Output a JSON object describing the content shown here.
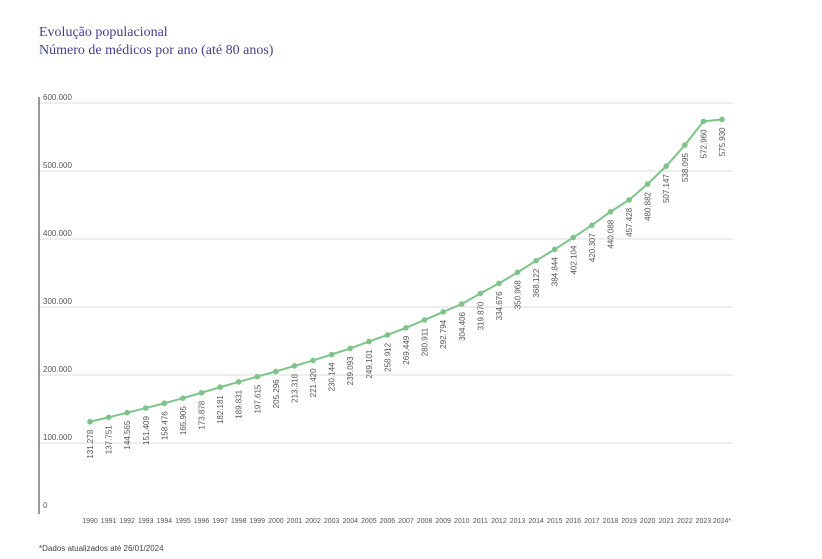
{
  "chart_data": {
    "type": "line",
    "title": "Evolução populacional",
    "subtitle": "Número de médicos por ano (até 80 anos)",
    "footnote": "*Dados atualizados até 26/01/2024",
    "colors": {
      "line": "#7dc48a",
      "grid": "#dddddd",
      "axis": "#333333"
    },
    "ylim": [
      0,
      600000
    ],
    "y_ticks": [
      {
        "value": 0,
        "label": "0"
      },
      {
        "value": 100000,
        "label": "100.000"
      },
      {
        "value": 200000,
        "label": "200.000"
      },
      {
        "value": 300000,
        "label": "300.000"
      },
      {
        "value": 400000,
        "label": "400.000"
      },
      {
        "value": 500000,
        "label": "500.000"
      },
      {
        "value": 600000,
        "label": "600.000"
      }
    ],
    "grid": true,
    "categories": [
      "1990",
      "1991",
      "1992",
      "1993",
      "1994",
      "1995",
      "1996",
      "1997",
      "1998",
      "1999",
      "2000",
      "2001",
      "2002",
      "2003",
      "2004",
      "2005",
      "2006",
      "2007",
      "2008",
      "2009",
      "2010",
      "2011",
      "2012",
      "2013",
      "2014",
      "2015",
      "2016",
      "2017",
      "2018",
      "2019",
      "2020",
      "2021",
      "2022",
      "2023",
      "2024*"
    ],
    "values": [
      131278,
      137751,
      144565,
      151409,
      158476,
      165905,
      173878,
      182181,
      189831,
      197615,
      205296,
      213318,
      221420,
      230144,
      239093,
      249101,
      258912,
      269449,
      280911,
      292794,
      304406,
      319870,
      334676,
      350968,
      368122,
      384844,
      402104,
      420307,
      440088,
      457428,
      480882,
      507147,
      538095,
      572960,
      575930
    ],
    "value_labels": [
      "131.278",
      "137.751",
      "144.565",
      "151.409",
      "158.476",
      "165.905",
      "173.878",
      "182.181",
      "189.831",
      "197.615",
      "205.296",
      "213.318",
      "221.420",
      "230.144",
      "239.093",
      "249.101",
      "258.912",
      "269.449",
      "280.911",
      "292.794",
      "304.406",
      "319.870",
      "334.676",
      "350.968",
      "368.122",
      "384.844",
      "402.104",
      "420.307",
      "440.088",
      "457.428",
      "480.882",
      "507.147",
      "538.095",
      "572.960",
      "575.930"
    ]
  }
}
